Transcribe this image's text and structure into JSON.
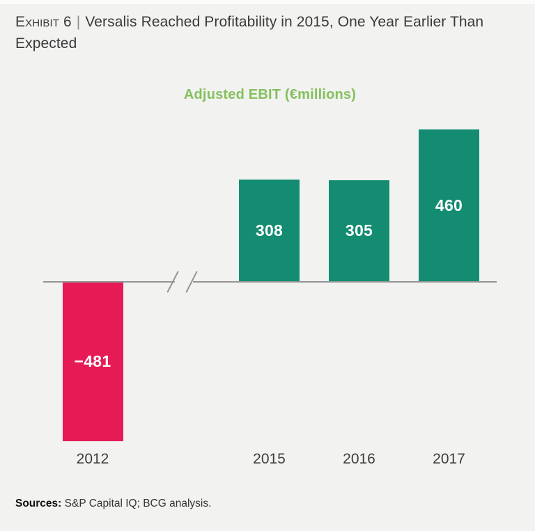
{
  "header": {
    "exhibit_label": "Exhibit 6",
    "separator": "|",
    "title": "Versalis Reached Profitability in 2015, One Year Earlier Than Expected"
  },
  "chart_data": {
    "type": "bar",
    "title": "Adjusted EBIT (€millions)",
    "categories": [
      "2012",
      "2015",
      "2016",
      "2017"
    ],
    "values": [
      -481,
      308,
      305,
      460
    ],
    "data_labels": [
      "−481",
      "308",
      "305",
      "460"
    ],
    "xlabel": "",
    "ylabel": "",
    "baseline": 0,
    "grid": false,
    "legend": false,
    "axis_break": {
      "between": [
        "2012",
        "2015"
      ]
    },
    "colors": {
      "positive": "#148c72",
      "negative": "#e61a55"
    }
  },
  "footer": {
    "sources_label": "Sources:",
    "sources_text": " S&P Capital IQ; BCG analysis."
  },
  "colors": {
    "background": "#f2f2f0",
    "chart_title": "#84c05e",
    "axis_line": "#959595",
    "title_text": "#3a3a3a",
    "tick_text": "#3d3d3d",
    "value_label_text": "#ffffff"
  }
}
